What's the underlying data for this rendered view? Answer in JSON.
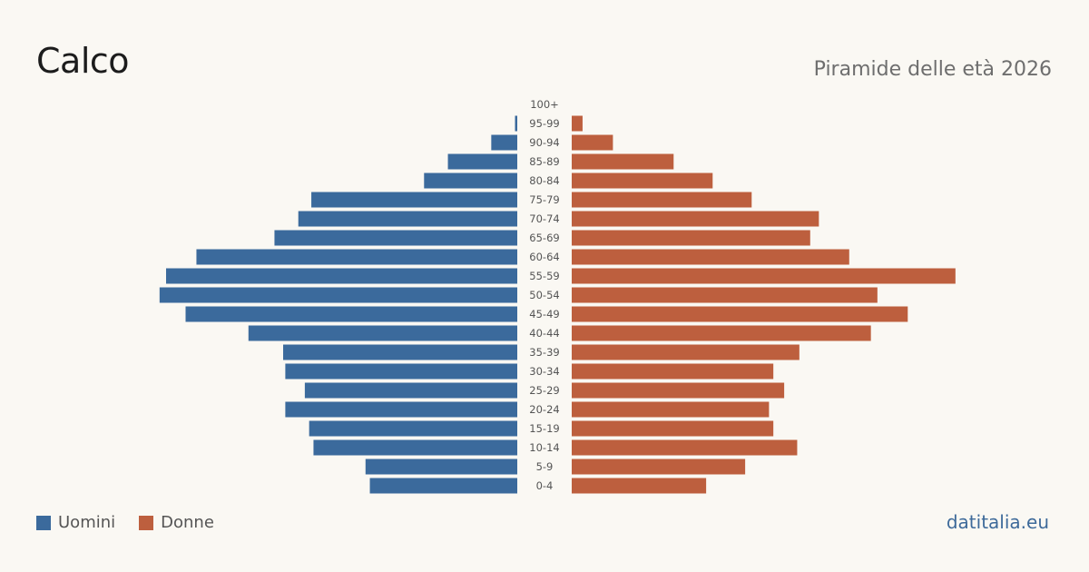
{
  "header": {
    "title": "Calco",
    "subtitle": "Piramide delle età 2026"
  },
  "legend": {
    "men_label": "Uomini",
    "women_label": "Donne"
  },
  "footer": {
    "site": "datitalia.eu"
  },
  "colors": {
    "men": "#3b6a9c",
    "women": "#bd5f3e",
    "background": "#faf8f3"
  },
  "chart_data": {
    "type": "bar",
    "orientation": "horizontal",
    "subtype": "population-pyramid",
    "categories": [
      "100+",
      "95-99",
      "90-94",
      "85-89",
      "80-84",
      "75-79",
      "70-74",
      "65-69",
      "60-64",
      "55-59",
      "50-54",
      "45-49",
      "40-44",
      "35-39",
      "30-34",
      "25-29",
      "20-24",
      "15-19",
      "10-14",
      "5-9",
      "0-4"
    ],
    "series": [
      {
        "name": "Uomini",
        "side": "left",
        "values": [
          0,
          1,
          12,
          32,
          43,
          95,
          101,
          112,
          148,
          162,
          165,
          153,
          124,
          108,
          107,
          98,
          107,
          96,
          94,
          70,
          68
        ]
      },
      {
        "name": "Donne",
        "side": "right",
        "values": [
          0,
          5,
          19,
          47,
          65,
          83,
          114,
          110,
          128,
          177,
          141,
          155,
          138,
          105,
          93,
          98,
          91,
          93,
          104,
          80,
          62
        ]
      }
    ],
    "xlim": [
      0,
      180
    ],
    "grid": false,
    "legend_position": "bottom-left"
  }
}
